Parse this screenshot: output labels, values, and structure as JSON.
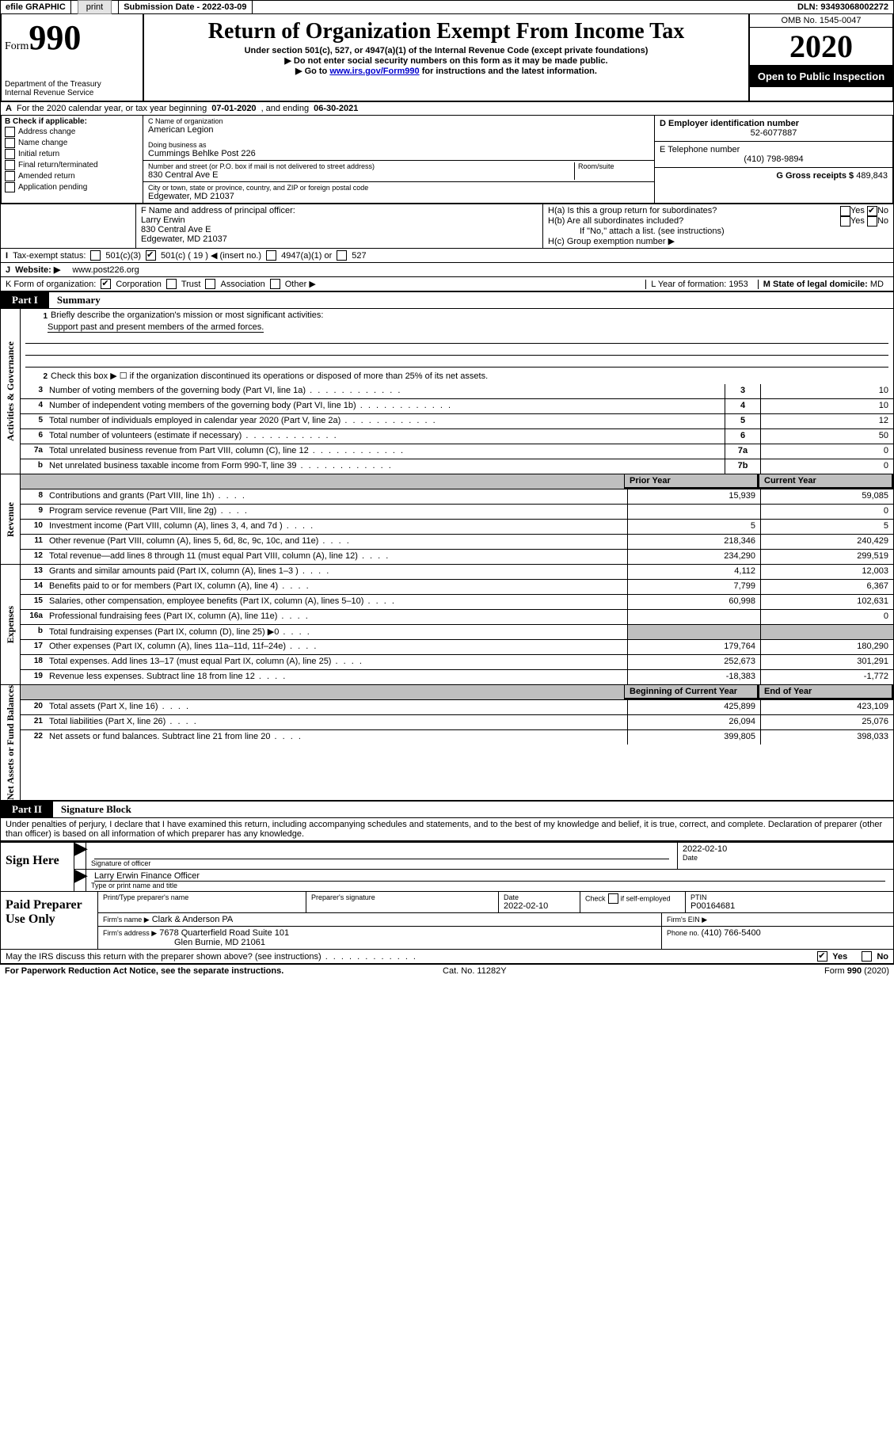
{
  "topbar": {
    "efile": "efile GRAPHIC",
    "print": "print",
    "subdate_label": "Submission Date - ",
    "subdate": "2022-03-09",
    "dln_label": "DLN: ",
    "dln": "93493068002272"
  },
  "hdr": {
    "form": "Form",
    "num": "990",
    "dept": "Department of the Treasury",
    "irs": "Internal Revenue Service",
    "title": "Return of Organization Exempt From Income Tax",
    "sub1": "Under section 501(c), 527, or 4947(a)(1) of the Internal Revenue Code (except private foundations)",
    "sub2": "Do not enter social security numbers on this form as it may be made public.",
    "sub3a": "Go to ",
    "sub3_link": "www.irs.gov/Form990",
    "sub3b": " for instructions and the latest information.",
    "omb": "OMB No. 1545-0047",
    "year": "2020",
    "open": "Open to Public Inspection"
  },
  "periodA": {
    "text1": "For the 2020 calendar year, or tax year beginning ",
    "begin": "07-01-2020",
    "text2": " , and ending ",
    "end": "06-30-2021"
  },
  "boxB": {
    "label": "B Check if applicable:",
    "opts": [
      "Address change",
      "Name change",
      "Initial return",
      "Final return/terminated",
      "Amended return",
      "Application pending"
    ]
  },
  "boxC": {
    "name_label": "C Name of organization",
    "name": "American Legion",
    "dba_label": "Doing business as",
    "dba": "Cummings Behlke Post 226",
    "addr_label": "Number and street (or P.O. box if mail is not delivered to street address)",
    "room_label": "Room/suite",
    "addr": "830 Central Ave E",
    "city_label": "City or town, state or province, country, and ZIP or foreign postal code",
    "city": "Edgewater, MD  21037"
  },
  "boxD": {
    "label": "D Employer identification number",
    "val": "52-6077887"
  },
  "boxE": {
    "label": "E Telephone number",
    "val": "(410) 798-9894"
  },
  "boxG": {
    "label": "G Gross receipts $ ",
    "val": "489,843"
  },
  "boxF": {
    "label": "F  Name and address of principal officer:",
    "name": "Larry Erwin",
    "addr1": "830 Central Ave E",
    "addr2": "Edgewater, MD  21037"
  },
  "boxH": {
    "a": "H(a)  Is this a group return for subordinates?",
    "b": "H(b)  Are all subordinates included?",
    "b_note": "If \"No,\" attach a list. (see instructions)",
    "c": "H(c)  Group exemption number ▶",
    "yes": "Yes",
    "no": "No"
  },
  "boxI": {
    "label": "Tax-exempt status:",
    "o1": "501(c)(3)",
    "o2": "501(c) ( 19 ) ◀ (insert no.)",
    "o3": "4947(a)(1) or",
    "o4": "527"
  },
  "boxJ": {
    "label": "Website: ▶",
    "val": "www.post226.org"
  },
  "boxK": {
    "label": "K Form of organization:",
    "o1": "Corporation",
    "o2": "Trust",
    "o3": "Association",
    "o4": "Other ▶"
  },
  "boxL": {
    "label": "L Year of formation: ",
    "val": "1953"
  },
  "boxM": {
    "label": "M State of legal domicile:",
    "val": "MD"
  },
  "part1": {
    "tag": "Part I",
    "title": "Summary"
  },
  "s1": {
    "q": "Briefly describe the organization's mission or most significant activities:",
    "a": "Support past and present members of the armed forces."
  },
  "s2": "Check this box ▶ ☐  if the organization discontinued its operations or disposed of more than 25% of its net assets.",
  "lines_top": [
    {
      "n": "3",
      "d": "Number of voting members of the governing body (Part VI, line 1a)",
      "b": "3",
      "v": "10"
    },
    {
      "n": "4",
      "d": "Number of independent voting members of the governing body (Part VI, line 1b)",
      "b": "4",
      "v": "10"
    },
    {
      "n": "5",
      "d": "Total number of individuals employed in calendar year 2020 (Part V, line 2a)",
      "b": "5",
      "v": "12"
    },
    {
      "n": "6",
      "d": "Total number of volunteers (estimate if necessary)",
      "b": "6",
      "v": "50"
    },
    {
      "n": "7a",
      "d": "Total unrelated business revenue from Part VIII, column (C), line 12",
      "b": "7a",
      "v": "0"
    },
    {
      "n": "b",
      "d": "Net unrelated business taxable income from Form 990-T, line 39",
      "b": "7b",
      "v": "0"
    }
  ],
  "col_hdr": {
    "prior": "Prior Year",
    "current": "Current Year"
  },
  "revenue": [
    {
      "n": "8",
      "d": "Contributions and grants (Part VIII, line 1h)",
      "p": "15,939",
      "c": "59,085"
    },
    {
      "n": "9",
      "d": "Program service revenue (Part VIII, line 2g)",
      "p": "",
      "c": "0"
    },
    {
      "n": "10",
      "d": "Investment income (Part VIII, column (A), lines 3, 4, and 7d )",
      "p": "5",
      "c": "5"
    },
    {
      "n": "11",
      "d": "Other revenue (Part VIII, column (A), lines 5, 6d, 8c, 9c, 10c, and 11e)",
      "p": "218,346",
      "c": "240,429"
    },
    {
      "n": "12",
      "d": "Total revenue—add lines 8 through 11 (must equal Part VIII, column (A), line 12)",
      "p": "234,290",
      "c": "299,519"
    }
  ],
  "expenses": [
    {
      "n": "13",
      "d": "Grants and similar amounts paid (Part IX, column (A), lines 1–3 )",
      "p": "4,112",
      "c": "12,003"
    },
    {
      "n": "14",
      "d": "Benefits paid to or for members (Part IX, column (A), line 4)",
      "p": "7,799",
      "c": "6,367"
    },
    {
      "n": "15",
      "d": "Salaries, other compensation, employee benefits (Part IX, column (A), lines 5–10)",
      "p": "60,998",
      "c": "102,631"
    },
    {
      "n": "16a",
      "d": "Professional fundraising fees (Part IX, column (A), line 11e)",
      "p": "",
      "c": "0"
    },
    {
      "n": "b",
      "d": "Total fundraising expenses (Part IX, column (D), line 25) ▶0",
      "p": "SHADE",
      "c": "SHADE"
    },
    {
      "n": "17",
      "d": "Other expenses (Part IX, column (A), lines 11a–11d, 11f–24e)",
      "p": "179,764",
      "c": "180,290"
    },
    {
      "n": "18",
      "d": "Total expenses. Add lines 13–17 (must equal Part IX, column (A), line 25)",
      "p": "252,673",
      "c": "301,291"
    },
    {
      "n": "19",
      "d": "Revenue less expenses. Subtract line 18 from line 12",
      "p": "-18,383",
      "c": "-1,772"
    }
  ],
  "net_hdr": {
    "begin": "Beginning of Current Year",
    "end": "End of Year"
  },
  "net": [
    {
      "n": "20",
      "d": "Total assets (Part X, line 16)",
      "p": "425,899",
      "c": "423,109"
    },
    {
      "n": "21",
      "d": "Total liabilities (Part X, line 26)",
      "p": "26,094",
      "c": "25,076"
    },
    {
      "n": "22",
      "d": "Net assets or fund balances. Subtract line 21 from line 20",
      "p": "399,805",
      "c": "398,033"
    }
  ],
  "vlabels": {
    "ag": "Activities & Governance",
    "rev": "Revenue",
    "exp": "Expenses",
    "net": "Net Assets or Fund Balances"
  },
  "part2": {
    "tag": "Part II",
    "title": "Signature Block"
  },
  "perjury": "Under penalties of perjury, I declare that I have examined this return, including accompanying schedules and statements, and to the best of my knowledge and belief, it is true, correct, and complete. Declaration of preparer (other than officer) is based on all information of which preparer has any knowledge.",
  "sign": {
    "here": "Sign Here",
    "sig_label": "Signature of officer",
    "date_label": "Date",
    "date": "2022-02-10",
    "name": "Larry Erwin Finance Officer",
    "name_label": "Type or print name and title"
  },
  "paid": {
    "label": "Paid Preparer Use Only",
    "h1": "Print/Type preparer's name",
    "h2": "Preparer's signature",
    "h3": "Date",
    "date": "2022-02-10",
    "h4a": "Check",
    "h4b": "if self-employed",
    "h5": "PTIN",
    "ptin": "P00164681",
    "firm_label": "Firm's name    ▶",
    "firm": "Clark & Anderson PA",
    "ein_label": "Firm's EIN ▶",
    "addr_label": "Firm's address ▶",
    "addr1": "7678 Quarterfield Road Suite 101",
    "addr2": "Glen Burnie, MD  21061",
    "phone_label": "Phone no. ",
    "phone": "(410) 766-5400"
  },
  "discuss": {
    "q": "May the IRS discuss this return with the preparer shown above? (see instructions)",
    "yes": "Yes",
    "no": "No"
  },
  "footer": {
    "left": "For Paperwork Reduction Act Notice, see the separate instructions.",
    "mid": "Cat. No. 11282Y",
    "right": "Form 990 (2020)"
  }
}
